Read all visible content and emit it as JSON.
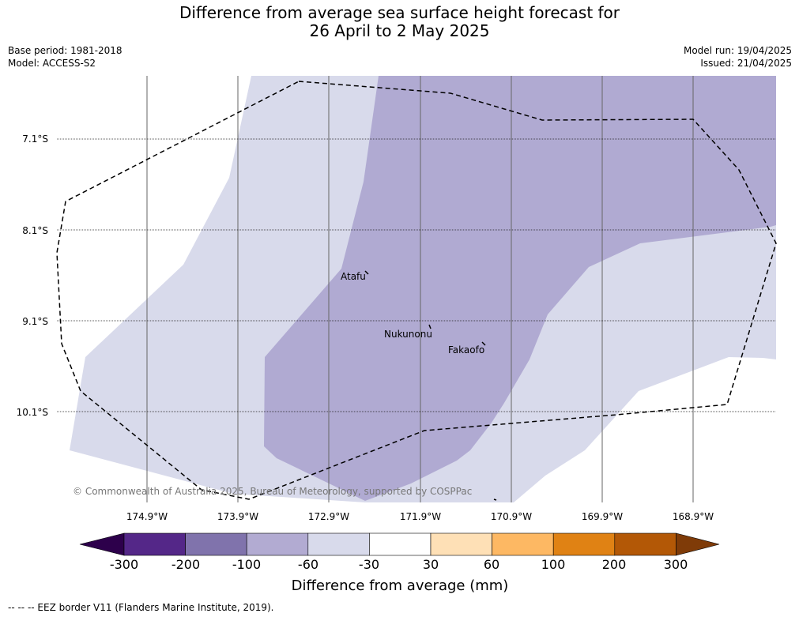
{
  "title_line1": "Difference from average sea surface height forecast for",
  "title_line2": "26 April to 2 May 2025",
  "base_period": "Base period: 1981-2018",
  "model": "Model: ACCESS-S2",
  "model_run": "Model run: 19/04/2025",
  "issued": "Issued: 21/04/2025",
  "lat_labels": [
    "7.1°S",
    "8.1°S",
    "9.1°S",
    "10.1°S"
  ],
  "lon_labels": [
    "174.9°W",
    "173.9°W",
    "172.9°W",
    "171.9°W",
    "170.9°W",
    "169.9°W",
    "168.9°W"
  ],
  "islands": {
    "atafu": "Atafu",
    "nukunonu": "Nukunonu",
    "fakaofo": "Fakaofo"
  },
  "copyright": "© Commonwealth of Australia 2025, Bureau of Meteorology, supported by COSPPac",
  "colorbar": {
    "title": "Difference from average (mm)",
    "ticks": [
      "-300",
      "-200",
      "-100",
      "-60",
      "-30",
      "30",
      "60",
      "100",
      "200",
      "300"
    ],
    "colors": [
      "#2d004b",
      "#542788",
      "#8073ac",
      "#b2abd2",
      "#d8daeb",
      "#ffffff",
      "#fee0b6",
      "#fdb863",
      "#e08214",
      "#b35806",
      "#7f3b08"
    ]
  },
  "footer": "--  --  -- EEZ border V11 (Flanders Marine Institute, 2019)."
}
